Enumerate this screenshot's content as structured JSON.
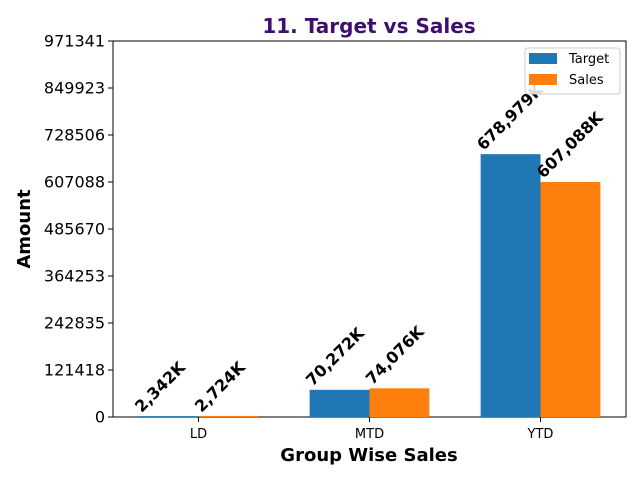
{
  "chart_data": {
    "type": "bar",
    "title": "11. Target vs Sales",
    "title_color": "#3f0f6f",
    "xlabel": "Group Wise Sales",
    "ylabel": "Amount",
    "categories": [
      "LD",
      "MTD",
      "YTD"
    ],
    "ylim": [
      0,
      971341
    ],
    "yticks": [
      "0",
      "121418",
      "242835",
      "364253",
      "485670",
      "607088",
      "728506",
      "849923",
      "971341"
    ],
    "ytick_values": [
      0,
      121418,
      242835,
      364253,
      485670,
      607088,
      728506,
      849923,
      971341
    ],
    "series": [
      {
        "name": "Target",
        "color": "#1f77b4",
        "values": [
          2342,
          70272,
          678979
        ],
        "labels": [
          "2,342K",
          "70,272K",
          "678,979K"
        ]
      },
      {
        "name": "Sales",
        "color": "#ff7f0e",
        "values": [
          2724,
          74076,
          607088
        ],
        "labels": [
          "2,724K",
          "74,076K",
          "607,088K"
        ]
      }
    ],
    "legend_position": "top-right",
    "grid": false
  }
}
